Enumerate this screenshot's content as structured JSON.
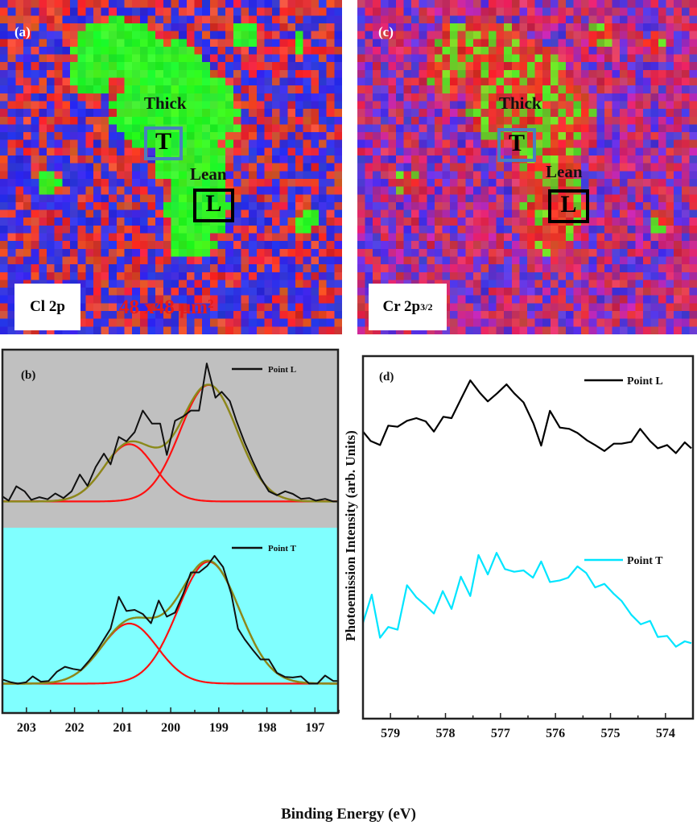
{
  "maps": {
    "a": {
      "tag": "(a)",
      "thick_label": "Thick",
      "lean_label": "Lean",
      "t_letter": "T",
      "l_letter": "L",
      "element_label": "Cl 2p",
      "scale_label": "48 x48 μm²"
    },
    "c": {
      "tag": "(c)",
      "thick_label": "Thick",
      "lean_label": "Lean",
      "t_letter": "T",
      "l_letter": "L",
      "element_label_main": "Cr 2p",
      "element_label_sub": "3/2"
    }
  },
  "colors": {
    "blue": "#2b2bd8",
    "green": "#22ee22",
    "red": "#e21a1a",
    "gray_bg": "#c0c0c0",
    "cyan_bg": "#80ffff",
    "fit_red": "#ff1010",
    "envelope": "#8a8a1a",
    "cyan_line": "#00e5ff",
    "t_box": "#4a7fbf"
  },
  "shared": {
    "ylabel": "Photoemission Intensity (arb. Units)",
    "xlabel": "Binding Energy (eV)"
  },
  "chart_data": [
    {
      "panel": "(b)",
      "type": "line",
      "title": "(b)",
      "xlim": [
        203.5,
        196.52
      ],
      "xticks": [
        203,
        202,
        201,
        200,
        199,
        198,
        197
      ],
      "subplots": [
        {
          "name": "Point L",
          "legend": "Point L",
          "ylim": [
            -0.19,
            1.1
          ],
          "background": "gray",
          "x": [
            203.49,
            203.37,
            203.21,
            203.04,
            202.9,
            202.73,
            202.56,
            202.4,
            202.23,
            202.06,
            201.89,
            201.73,
            201.56,
            201.39,
            201.25,
            201.08,
            200.92,
            200.75,
            200.58,
            200.39,
            200.22,
            200.08,
            199.91,
            199.74,
            199.58,
            199.41,
            199.25,
            199.07,
            198.94,
            198.77,
            198.63,
            198.46,
            198.29,
            198.13,
            197.96,
            197.79,
            197.62,
            197.46,
            197.29,
            197.12,
            196.98,
            196.79,
            196.62,
            196.51
          ],
          "y": [
            0.035,
            0.006,
            0.11,
            0.074,
            0.012,
            0.031,
            0.016,
            0.058,
            0.025,
            0.074,
            0.195,
            0.113,
            0.25,
            0.347,
            0.269,
            0.468,
            0.435,
            0.503,
            0.659,
            0.565,
            0.565,
            0.337,
            0.585,
            0.616,
            0.659,
            0.659,
            1.0,
            0.752,
            0.795,
            0.727,
            0.581,
            0.425,
            0.288,
            0.172,
            0.074,
            0.045,
            0.074,
            0.055,
            0.019,
            0.025,
            0.006,
            0.019,
            0.0,
            0.0
          ],
          "fits": [
            {
              "center": 200.86,
              "amplitude": 0.415,
              "fwhm": 1.23
            },
            {
              "center": 199.21,
              "amplitude": 0.844,
              "fwhm": 1.4
            }
          ]
        },
        {
          "name": "Point T",
          "legend": "Point T",
          "ylim": [
            -0.23,
            1.22
          ],
          "background": "cyan",
          "x": [
            203.49,
            203.32,
            203.18,
            203.01,
            202.87,
            202.7,
            202.54,
            202.37,
            202.2,
            202.03,
            201.87,
            201.7,
            201.53,
            201.25,
            201.08,
            200.92,
            200.75,
            200.58,
            200.41,
            200.25,
            200.08,
            199.91,
            199.74,
            199.58,
            199.41,
            199.24,
            199.09,
            198.91,
            198.74,
            198.6,
            198.46,
            198.29,
            198.13,
            197.96,
            197.79,
            197.62,
            197.46,
            197.29,
            197.12,
            196.95,
            196.79,
            196.62,
            196.51
          ],
          "y": [
            0.031,
            0.01,
            0.0,
            0.01,
            0.057,
            0.015,
            0.021,
            0.092,
            0.132,
            0.115,
            0.105,
            0.178,
            0.262,
            0.43,
            0.679,
            0.568,
            0.577,
            0.545,
            0.472,
            0.65,
            0.524,
            0.556,
            0.702,
            0.87,
            0.87,
            0.922,
            1.0,
            0.912,
            0.702,
            0.43,
            0.346,
            0.262,
            0.189,
            0.189,
            0.084,
            0.052,
            0.048,
            0.057,
            0.0,
            0.0,
            0.063,
            0.021,
            0.021
          ],
          "fits": [
            {
              "center": 200.86,
              "amplitude": 0.47,
              "fwhm": 1.37
            },
            {
              "center": 199.21,
              "amplitude": 0.954,
              "fwhm": 1.51
            }
          ]
        }
      ]
    },
    {
      "panel": "(d)",
      "type": "line",
      "title": "(d)",
      "xlim": [
        579.5,
        573.5
      ],
      "ylim": [
        0,
        13.45
      ],
      "xticks": [
        579,
        578,
        577,
        576,
        575,
        574
      ],
      "series": [
        {
          "name": "Point L",
          "color": "#000000",
          "x": [
            579.5,
            579.36,
            579.19,
            579.04,
            578.87,
            578.7,
            578.53,
            578.36,
            578.21,
            578.04,
            577.89,
            577.72,
            577.55,
            577.38,
            577.23,
            577.06,
            576.89,
            576.75,
            576.58,
            576.4,
            576.26,
            576.1,
            575.92,
            575.75,
            575.6,
            575.43,
            575.28,
            575.11,
            574.94,
            574.8,
            574.62,
            574.46,
            574.28,
            574.14,
            573.97,
            573.81,
            573.65,
            573.53
          ],
          "y": [
            10.65,
            10.3,
            10.15,
            10.87,
            10.83,
            11.05,
            11.15,
            11.03,
            10.65,
            11.2,
            11.15,
            11.85,
            12.55,
            12.1,
            11.77,
            12.07,
            12.4,
            12.07,
            11.73,
            10.95,
            10.13,
            11.42,
            10.8,
            10.75,
            10.6,
            10.33,
            10.15,
            9.93,
            10.2,
            10.2,
            10.27,
            10.75,
            10.3,
            10.03,
            10.15,
            9.85,
            10.25,
            10.03
          ]
        },
        {
          "name": "Point T",
          "color": "#00e5ff",
          "x": [
            579.5,
            579.34,
            579.19,
            579.04,
            578.87,
            578.7,
            578.53,
            578.36,
            578.21,
            578.05,
            577.89,
            577.72,
            577.55,
            577.4,
            577.23,
            577.07,
            576.92,
            576.75,
            576.58,
            576.41,
            576.26,
            576.1,
            575.92,
            575.77,
            575.6,
            575.44,
            575.28,
            575.11,
            574.94,
            574.8,
            574.62,
            574.45,
            574.28,
            574.14,
            573.97,
            573.81,
            573.65,
            573.53
          ],
          "y": [
            3.55,
            4.6,
            3.0,
            3.4,
            3.3,
            4.95,
            4.5,
            4.2,
            3.9,
            4.73,
            4.07,
            5.27,
            4.55,
            6.07,
            5.35,
            6.15,
            5.55,
            5.45,
            5.5,
            5.23,
            5.83,
            5.07,
            5.13,
            5.23,
            5.65,
            5.4,
            4.87,
            5.0,
            4.63,
            4.37,
            3.85,
            3.5,
            3.63,
            3.03,
            3.07,
            2.67,
            2.87,
            2.8
          ]
        }
      ]
    }
  ]
}
